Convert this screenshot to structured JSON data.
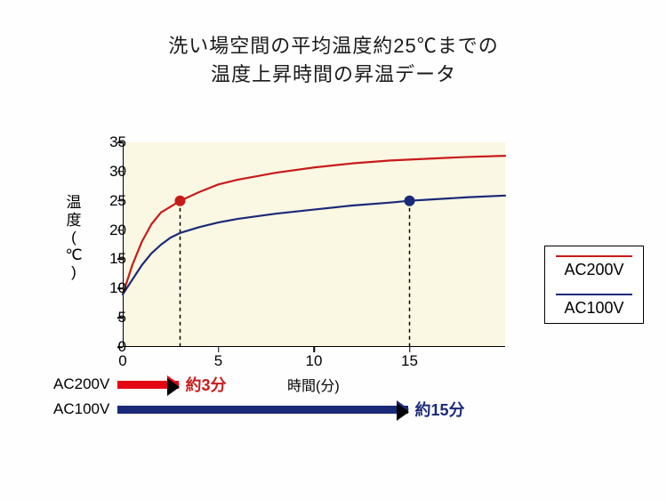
{
  "title_line1": "洗い場空間の平均温度約25℃までの",
  "title_line2": "温度上昇時間の昇温データ",
  "chart": {
    "type": "line",
    "background_color": "#faf8e2",
    "y_axis": {
      "label": "温度(℃)",
      "min": 0,
      "max": 35,
      "ticks": [
        0,
        5,
        10,
        15,
        20,
        25,
        30,
        35
      ]
    },
    "x_axis": {
      "label": "時間(分)",
      "min": 0,
      "max": 20,
      "ticks": [
        0,
        5,
        10,
        15
      ]
    },
    "series": [
      {
        "name": "AC200V",
        "color": "#c71b1b",
        "line_width": 2.2,
        "points": [
          [
            0,
            9
          ],
          [
            0.5,
            14
          ],
          [
            1,
            18
          ],
          [
            1.5,
            21
          ],
          [
            2,
            23
          ],
          [
            2.5,
            24
          ],
          [
            3,
            25
          ],
          [
            4,
            26.5
          ],
          [
            5,
            27.8
          ],
          [
            6,
            28.6
          ],
          [
            8,
            29.8
          ],
          [
            10,
            30.7
          ],
          [
            12,
            31.4
          ],
          [
            14,
            31.9
          ],
          [
            16,
            32.2
          ],
          [
            18,
            32.5
          ],
          [
            20,
            32.7
          ]
        ],
        "marker": {
          "x": 3,
          "y": 25,
          "radius": 6
        }
      },
      {
        "name": "AC100V",
        "color": "#1a2a78",
        "line_width": 2.2,
        "points": [
          [
            0,
            9
          ],
          [
            0.5,
            11.5
          ],
          [
            1,
            14
          ],
          [
            1.5,
            16
          ],
          [
            2,
            17.5
          ],
          [
            2.5,
            18.7
          ],
          [
            3,
            19.5
          ],
          [
            4,
            20.5
          ],
          [
            5,
            21.3
          ],
          [
            6,
            21.9
          ],
          [
            8,
            22.8
          ],
          [
            10,
            23.5
          ],
          [
            12,
            24.2
          ],
          [
            14,
            24.7
          ],
          [
            15,
            25
          ],
          [
            16,
            25.2
          ],
          [
            18,
            25.6
          ],
          [
            20,
            25.9
          ]
        ],
        "marker": {
          "x": 15,
          "y": 25,
          "radius": 6
        }
      }
    ],
    "drop_lines": [
      {
        "x": 3,
        "y": 25,
        "color": "#000"
      },
      {
        "x": 15,
        "y": 25,
        "color": "#000"
      }
    ]
  },
  "legend": {
    "items": [
      {
        "label": "AC200V",
        "color": "#c71b1b"
      },
      {
        "label": "AC100V",
        "color": "#1a2a78"
      }
    ]
  },
  "annotations": [
    {
      "label": "AC200V",
      "color": "#e30613",
      "arrow_to_x": 3,
      "value": "約3分",
      "value_color": "#c71b1b"
    },
    {
      "label": "AC100V",
      "color": "#1a2a78",
      "arrow_to_x": 15,
      "value": "約15分",
      "value_color": "#1a2a78"
    }
  ]
}
